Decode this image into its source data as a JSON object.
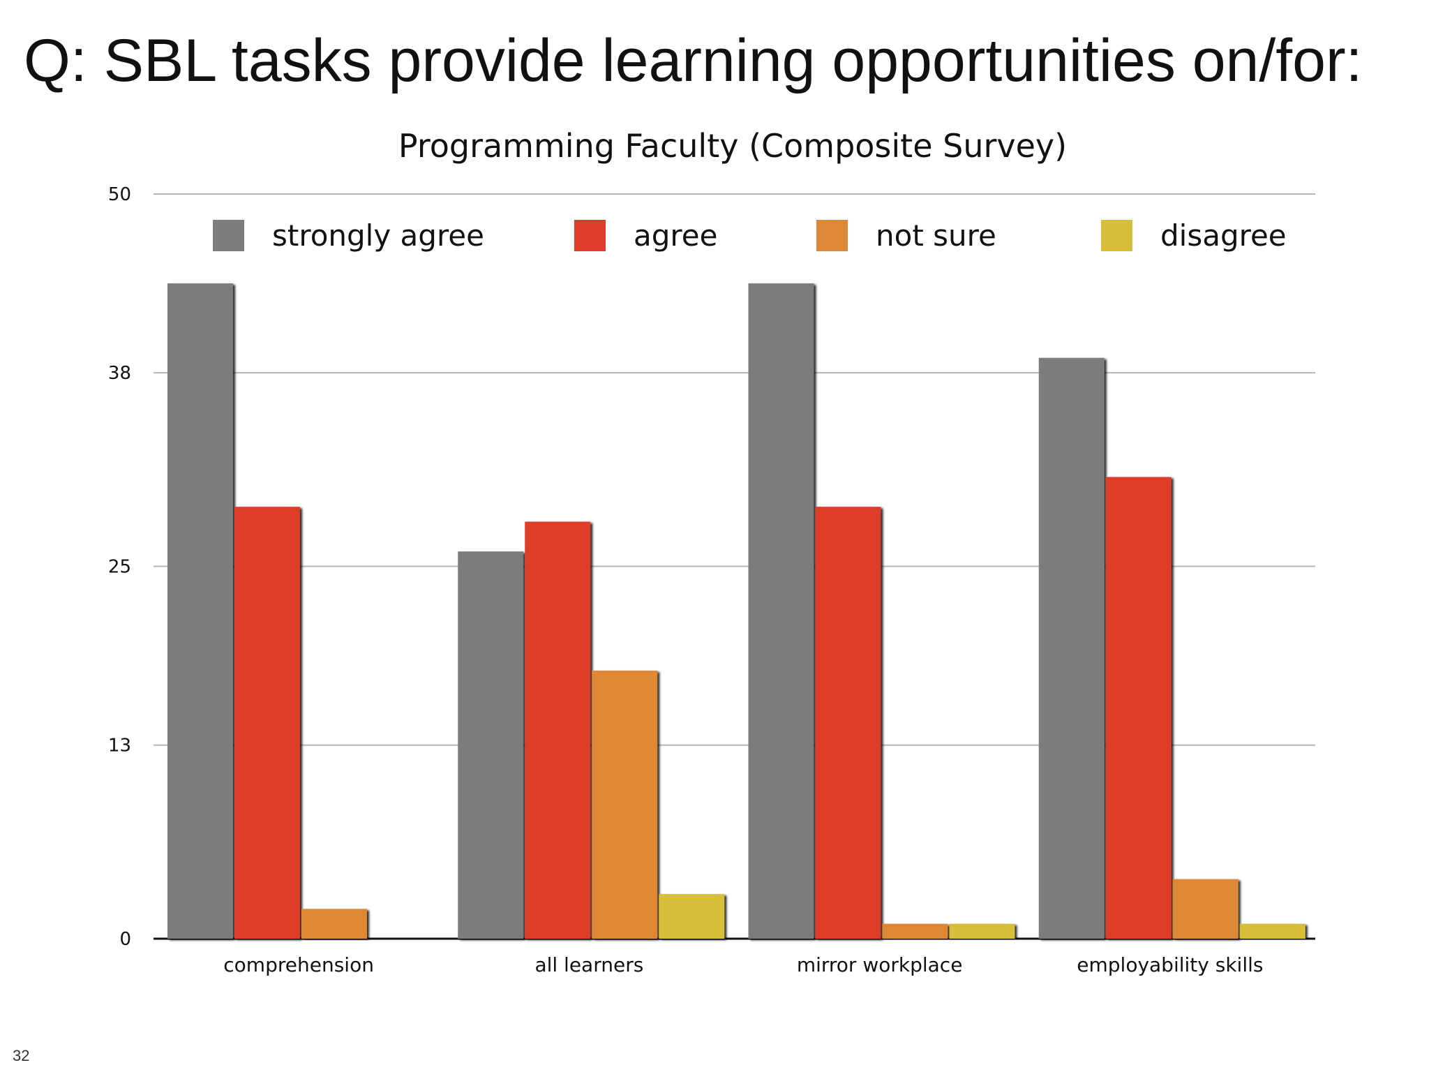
{
  "slide": {
    "title": "Q: SBL tasks provide learning opportunities on/for:",
    "page_number": "32"
  },
  "chart_data": {
    "type": "bar",
    "title": "Programming Faculty (Composite Survey)",
    "xlabel": "",
    "ylabel": "",
    "ylim": [
      0,
      50
    ],
    "yticks": [
      0,
      13,
      25,
      38,
      50
    ],
    "grid": true,
    "legend": "top",
    "categories": [
      "comprehension",
      "all learners",
      "mirror workplace",
      "employability skills"
    ],
    "series": [
      {
        "name": "strongly agree",
        "color": "#7d7c7c",
        "values": [
          44,
          26,
          44,
          39
        ]
      },
      {
        "name": "agree",
        "color": "#de3c2c",
        "values": [
          29,
          28,
          29,
          31
        ]
      },
      {
        "name": "not sure",
        "color": "#dc8836",
        "values": [
          2,
          18,
          1,
          4
        ]
      },
      {
        "name": "disagree",
        "color": "#d8be3a",
        "values": [
          0,
          3,
          1,
          1
        ]
      }
    ]
  }
}
